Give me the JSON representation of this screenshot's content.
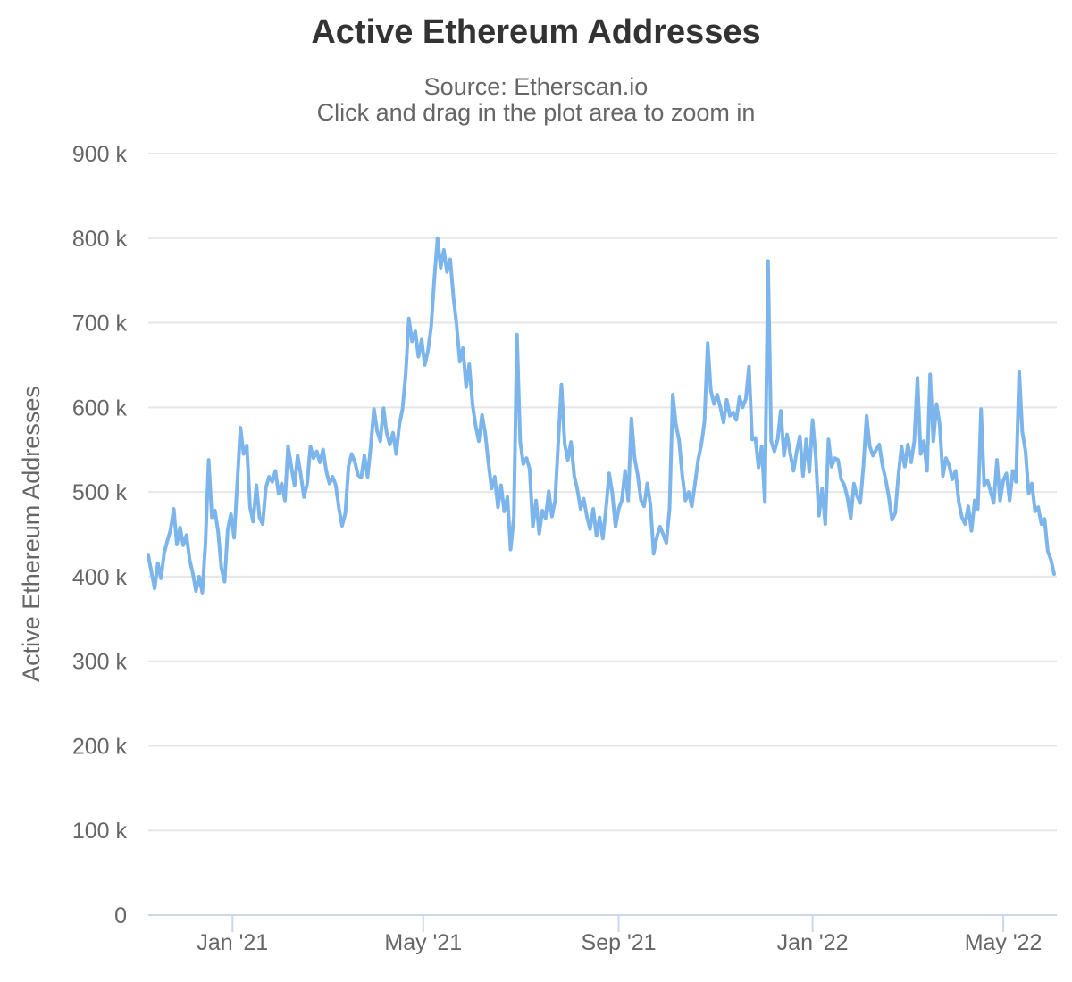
{
  "header": {
    "title": "Active Ethereum Addresses",
    "subtitle_source": "Source: Etherscan.io",
    "subtitle_hint": "Click and drag in the plot area to zoom in"
  },
  "colors": {
    "series_line": "#7cb5ec",
    "gridline": "#e6e6e6",
    "axis_line": "#ccd6eb",
    "title_text": "#333333",
    "label_text": "#666666",
    "background": "#ffffff"
  },
  "chart_data": {
    "type": "line",
    "title": "Active Ethereum Addresses",
    "subtitle": [
      "Source: Etherscan.io",
      "Click and drag in the plot area to zoom in"
    ],
    "xlabel": "",
    "ylabel": "Active Ethereum Addresses",
    "ylim": [
      0,
      900000
    ],
    "grid": "horizontal-only",
    "legend": "none",
    "markers": "none",
    "y_ticks": [
      {
        "value_k": 0,
        "label": "0"
      },
      {
        "value_k": 100,
        "label": "100 k"
      },
      {
        "value_k": 200,
        "label": "200 k"
      },
      {
        "value_k": 300,
        "label": "300 k"
      },
      {
        "value_k": 400,
        "label": "400 k"
      },
      {
        "value_k": 500,
        "label": "500 k"
      },
      {
        "value_k": 600,
        "label": "600 k"
      },
      {
        "value_k": 700,
        "label": "700 k"
      },
      {
        "value_k": 800,
        "label": "800 k"
      },
      {
        "value_k": 900,
        "label": "900 k"
      }
    ],
    "x_ticks": [
      {
        "date": "2021-01-01",
        "label": "Jan '21"
      },
      {
        "date": "2021-05-01",
        "label": "May '21"
      },
      {
        "date": "2021-09-01",
        "label": "Sep '21"
      },
      {
        "date": "2022-01-01",
        "label": "Jan '22"
      },
      {
        "date": "2022-05-01",
        "label": "May '22"
      }
    ],
    "series": [
      {
        "name": "Active Ethereum Addresses",
        "color": "#7cb5ec",
        "unit": "thousand addresses (values_k are in thousands)",
        "x_start_date": "2020-11-09",
        "x_interval_days": 2,
        "x_end_date": "2022-06-02",
        "values_k": [
          425,
          405,
          386,
          416,
          398,
          428,
          442,
          455,
          480,
          438,
          458,
          437,
          449,
          420,
          404,
          383,
          400,
          381,
          440,
          538,
          470,
          478,
          452,
          410,
          394,
          455,
          474,
          446,
          510,
          576,
          545,
          555,
          482,
          465,
          508,
          470,
          462,
          505,
          518,
          512,
          525,
          498,
          510,
          490,
          554,
          530,
          508,
          543,
          520,
          494,
          510,
          554,
          540,
          548,
          535,
          550,
          525,
          510,
          518,
          508,
          480,
          460,
          475,
          530,
          545,
          535,
          520,
          517,
          543,
          518,
          555,
          598,
          572,
          560,
          599,
          570,
          556,
          570,
          545,
          580,
          598,
          640,
          705,
          678,
          690,
          660,
          680,
          650,
          667,
          696,
          752,
          800,
          765,
          786,
          760,
          775,
          730,
          698,
          654,
          670,
          624,
          651,
          604,
          578,
          560,
          591,
          570,
          535,
          504,
          518,
          482,
          508,
          477,
          494,
          432,
          470,
          686,
          560,
          533,
          540,
          527,
          459,
          490,
          451,
          478,
          469,
          501,
          471,
          490,
          560,
          627,
          557,
          538,
          559,
          519,
          503,
          480,
          492,
          471,
          456,
          480,
          448,
          470,
          445,
          480,
          522,
          498,
          459,
          480,
          490,
          525,
          490,
          587,
          540,
          520,
          490,
          483,
          510,
          485,
          427,
          447,
          459,
          450,
          440,
          480,
          615,
          580,
          561,
          520,
          490,
          500,
          483,
          510,
          538,
          556,
          583,
          676,
          620,
          604,
          615,
          600,
          582,
          609,
          590,
          594,
          585,
          612,
          600,
          610,
          648,
          562,
          564,
          529,
          554,
          488,
          773,
          560,
          548,
          562,
          596,
          543,
          568,
          545,
          525,
          548,
          566,
          519,
          562,
          524,
          585,
          541,
          472,
          504,
          462,
          562,
          530,
          540,
          538,
          515,
          508,
          493,
          469,
          510,
          495,
          487,
          530,
          590,
          554,
          543,
          550,
          556,
          531,
          515,
          494,
          467,
          475,
          520,
          554,
          530,
          556,
          535,
          560,
          635,
          545,
          560,
          525,
          639,
          560,
          604,
          580,
          519,
          540,
          531,
          515,
          525,
          488,
          470,
          462,
          483,
          454,
          490,
          480,
          598,
          508,
          514,
          501,
          487,
          538,
          490,
          514,
          522,
          490,
          525,
          512,
          642,
          571,
          548,
          498,
          510,
          477,
          482,
          462,
          468,
          430,
          420,
          403
        ]
      }
    ]
  }
}
